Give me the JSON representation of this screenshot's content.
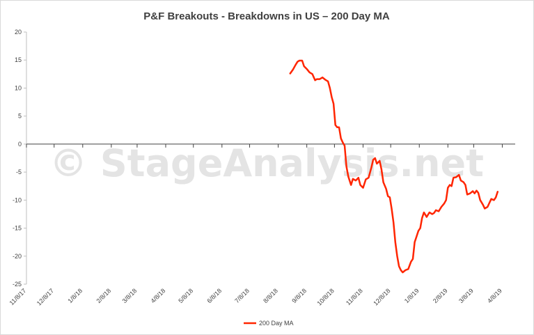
{
  "watermark": "© StageAnalysis.net",
  "chart_data": {
    "type": "line",
    "title": "P&F Breakouts - Breakdowns in US – 200 Day MA",
    "xlabel": "",
    "ylabel": "",
    "ylim": [
      -25,
      20
    ],
    "yticks": [
      20,
      15,
      10,
      5,
      0,
      -5,
      -10,
      -15,
      -20,
      -25
    ],
    "x_range": [
      "2017-11-08",
      "2019-04-22"
    ],
    "xtick_labels": [
      "11/8/17",
      "12/8/17",
      "1/8/18",
      "2/8/18",
      "3/8/18",
      "4/8/18",
      "5/8/18",
      "6/8/18",
      "7/8/18",
      "8/8/18",
      "9/8/18",
      "10/8/18",
      "11/8/18",
      "12/8/18",
      "1/8/19",
      "2/8/19",
      "3/8/19",
      "4/8/19"
    ],
    "xtick_dates": [
      "2017-11-08",
      "2017-12-08",
      "2018-01-08",
      "2018-02-08",
      "2018-03-08",
      "2018-04-08",
      "2018-05-08",
      "2018-06-08",
      "2018-07-08",
      "2018-08-08",
      "2018-09-08",
      "2018-10-08",
      "2018-11-08",
      "2018-12-08",
      "2019-01-08",
      "2019-02-08",
      "2019-03-08",
      "2019-04-08"
    ],
    "grid": false,
    "legend_position": "bottom",
    "series": [
      {
        "name": "200 Day MA",
        "color": "#ff2500",
        "points": [
          [
            "2018-08-21",
            12.6
          ],
          [
            "2018-08-24",
            13.3
          ],
          [
            "2018-08-27",
            14.2
          ],
          [
            "2018-08-29",
            14.7
          ],
          [
            "2018-08-31",
            14.9
          ],
          [
            "2018-09-03",
            14.9
          ],
          [
            "2018-09-05",
            13.9
          ],
          [
            "2018-09-08",
            13.4
          ],
          [
            "2018-09-11",
            12.8
          ],
          [
            "2018-09-14",
            12.5
          ],
          [
            "2018-09-17",
            11.4
          ],
          [
            "2018-09-19",
            11.6
          ],
          [
            "2018-09-22",
            11.6
          ],
          [
            "2018-09-25",
            11.9
          ],
          [
            "2018-09-28",
            11.5
          ],
          [
            "2018-10-01",
            11.2
          ],
          [
            "2018-10-03",
            10.0
          ],
          [
            "2018-10-05",
            8.4
          ],
          [
            "2018-10-07",
            7.2
          ],
          [
            "2018-10-09",
            3.4
          ],
          [
            "2018-10-11",
            3.0
          ],
          [
            "2018-10-13",
            3.0
          ],
          [
            "2018-10-15",
            1.0
          ],
          [
            "2018-10-17",
            0.3
          ],
          [
            "2018-10-19",
            -0.3
          ],
          [
            "2018-10-21",
            -4.0
          ],
          [
            "2018-10-23",
            -5.8
          ],
          [
            "2018-10-26",
            -7.3
          ],
          [
            "2018-10-28",
            -6.2
          ],
          [
            "2018-10-31",
            -6.5
          ],
          [
            "2018-11-03",
            -6.0
          ],
          [
            "2018-11-05",
            -7.3
          ],
          [
            "2018-11-08",
            -7.8
          ],
          [
            "2018-11-11",
            -6.3
          ],
          [
            "2018-11-14",
            -6.0
          ],
          [
            "2018-11-17",
            -4.2
          ],
          [
            "2018-11-19",
            -2.8
          ],
          [
            "2018-11-21",
            -2.5
          ],
          [
            "2018-11-23",
            -3.5
          ],
          [
            "2018-11-26",
            -3.0
          ],
          [
            "2018-11-28",
            -4.5
          ],
          [
            "2018-11-30",
            -6.8
          ],
          [
            "2018-12-03",
            -8.0
          ],
          [
            "2018-12-05",
            -9.3
          ],
          [
            "2018-12-07",
            -9.5
          ],
          [
            "2018-12-09",
            -11.5
          ],
          [
            "2018-12-11",
            -14.0
          ],
          [
            "2018-12-13",
            -17.5
          ],
          [
            "2018-12-15",
            -20.0
          ],
          [
            "2018-12-17",
            -21.8
          ],
          [
            "2018-12-19",
            -22.5
          ],
          [
            "2018-12-21",
            -22.9
          ],
          [
            "2018-12-24",
            -22.5
          ],
          [
            "2018-12-27",
            -22.3
          ],
          [
            "2018-12-30",
            -21.0
          ],
          [
            "2019-01-01",
            -20.5
          ],
          [
            "2019-01-03",
            -17.5
          ],
          [
            "2019-01-05",
            -16.5
          ],
          [
            "2019-01-07",
            -15.5
          ],
          [
            "2019-01-09",
            -15.0
          ],
          [
            "2019-01-11",
            -13.2
          ],
          [
            "2019-01-13",
            -12.2
          ],
          [
            "2019-01-16",
            -13.0
          ],
          [
            "2019-01-19",
            -12.2
          ],
          [
            "2019-01-22",
            -12.5
          ],
          [
            "2019-01-24",
            -12.3
          ],
          [
            "2019-01-26",
            -11.8
          ],
          [
            "2019-01-29",
            -12.0
          ],
          [
            "2019-02-01",
            -11.2
          ],
          [
            "2019-02-04",
            -10.6
          ],
          [
            "2019-02-06",
            -10.0
          ],
          [
            "2019-02-08",
            -7.8
          ],
          [
            "2019-02-10",
            -7.3
          ],
          [
            "2019-02-12",
            -7.5
          ],
          [
            "2019-02-14",
            -6.0
          ],
          [
            "2019-02-17",
            -5.9
          ],
          [
            "2019-02-20",
            -5.5
          ],
          [
            "2019-02-22",
            -6.5
          ],
          [
            "2019-02-25",
            -6.8
          ],
          [
            "2019-02-27",
            -7.3
          ],
          [
            "2019-03-01",
            -9.0
          ],
          [
            "2019-03-04",
            -8.8
          ],
          [
            "2019-03-07",
            -8.4
          ],
          [
            "2019-03-09",
            -8.8
          ],
          [
            "2019-03-11",
            -8.3
          ],
          [
            "2019-03-13",
            -8.7
          ],
          [
            "2019-03-15",
            -10.0
          ],
          [
            "2019-03-18",
            -10.8
          ],
          [
            "2019-03-20",
            -11.5
          ],
          [
            "2019-03-23",
            -11.2
          ],
          [
            "2019-03-25",
            -10.5
          ],
          [
            "2019-03-27",
            -9.8
          ],
          [
            "2019-03-30",
            -10.0
          ],
          [
            "2019-04-01",
            -9.5
          ],
          [
            "2019-04-03",
            -8.5
          ]
        ]
      }
    ]
  }
}
